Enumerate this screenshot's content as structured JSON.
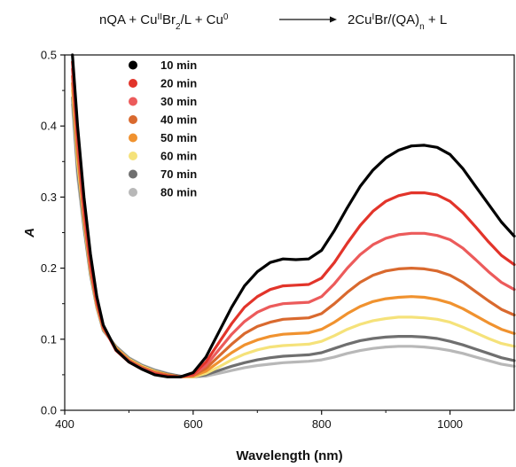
{
  "reaction": {
    "left": "nQA + Cu",
    "left_sup1": "II",
    "left_mid1": "Br",
    "left_sub1": "2",
    "left_mid2": "/L + Cu",
    "left_sup2": "0",
    "right": "2Cu",
    "right_sup1": "I",
    "right_mid1": "Br/(QA)",
    "right_sub1": "n",
    "right_mid2": " + L"
  },
  "chart_data": {
    "type": "line",
    "xlabel": "Wavelength (nm)",
    "ylabel": "A",
    "xlim": [
      400,
      1100
    ],
    "ylim": [
      0.0,
      0.5
    ],
    "xticks": [
      400,
      600,
      800,
      1000
    ],
    "xtick_labels": [
      "400",
      "600",
      "800",
      "1000"
    ],
    "yticks": [
      0.0,
      0.1,
      0.2,
      0.3,
      0.4,
      0.5
    ],
    "ytick_labels": [
      "0.0",
      "0.1",
      "0.2",
      "0.3",
      "0.4",
      "0.5"
    ],
    "legend_position": "top-left",
    "grid": false,
    "series": [
      {
        "name": "10 min",
        "color": "#000000",
        "x": [
          412,
          420,
          430,
          440,
          450,
          460,
          480,
          500,
          520,
          540,
          560,
          580,
          600,
          620,
          640,
          660,
          680,
          700,
          720,
          740,
          760,
          780,
          800,
          820,
          840,
          860,
          880,
          900,
          920,
          940,
          960,
          980,
          1000,
          1020,
          1040,
          1060,
          1080,
          1100
        ],
        "y": [
          0.5,
          0.4,
          0.3,
          0.22,
          0.16,
          0.12,
          0.085,
          0.068,
          0.058,
          0.05,
          0.047,
          0.047,
          0.053,
          0.075,
          0.11,
          0.145,
          0.175,
          0.195,
          0.208,
          0.213,
          0.212,
          0.213,
          0.225,
          0.253,
          0.285,
          0.315,
          0.338,
          0.355,
          0.366,
          0.372,
          0.373,
          0.37,
          0.36,
          0.34,
          0.315,
          0.29,
          0.265,
          0.245
        ]
      },
      {
        "name": "20 min",
        "color": "#e2342a",
        "x": [
          412,
          420,
          430,
          440,
          450,
          460,
          480,
          500,
          520,
          540,
          560,
          580,
          600,
          620,
          640,
          660,
          680,
          700,
          720,
          740,
          760,
          780,
          800,
          820,
          840,
          860,
          880,
          900,
          920,
          940,
          960,
          980,
          1000,
          1020,
          1040,
          1060,
          1080,
          1100
        ],
        "y": [
          0.49,
          0.39,
          0.29,
          0.21,
          0.155,
          0.118,
          0.084,
          0.068,
          0.058,
          0.051,
          0.048,
          0.047,
          0.051,
          0.068,
          0.095,
          0.122,
          0.145,
          0.16,
          0.17,
          0.175,
          0.176,
          0.177,
          0.186,
          0.208,
          0.235,
          0.26,
          0.28,
          0.294,
          0.302,
          0.306,
          0.306,
          0.303,
          0.294,
          0.278,
          0.258,
          0.237,
          0.218,
          0.205
        ]
      },
      {
        "name": "30 min",
        "color": "#ec5b5b",
        "x": [
          412,
          420,
          430,
          440,
          450,
          460,
          480,
          500,
          520,
          540,
          560,
          580,
          600,
          620,
          640,
          660,
          680,
          700,
          720,
          740,
          760,
          780,
          800,
          820,
          840,
          860,
          880,
          900,
          920,
          940,
          960,
          980,
          1000,
          1020,
          1040,
          1060,
          1080,
          1100
        ],
        "y": [
          0.48,
          0.38,
          0.28,
          0.205,
          0.152,
          0.117,
          0.085,
          0.069,
          0.059,
          0.052,
          0.048,
          0.047,
          0.05,
          0.063,
          0.085,
          0.107,
          0.125,
          0.138,
          0.146,
          0.15,
          0.151,
          0.152,
          0.16,
          0.178,
          0.2,
          0.219,
          0.233,
          0.242,
          0.247,
          0.249,
          0.249,
          0.246,
          0.24,
          0.228,
          0.212,
          0.195,
          0.18,
          0.17
        ]
      },
      {
        "name": "40 min",
        "color": "#d9692e",
        "x": [
          412,
          420,
          430,
          440,
          450,
          460,
          480,
          500,
          520,
          540,
          560,
          580,
          600,
          620,
          640,
          660,
          680,
          700,
          720,
          740,
          760,
          780,
          800,
          820,
          840,
          860,
          880,
          900,
          920,
          940,
          960,
          980,
          1000,
          1020,
          1040,
          1060,
          1080,
          1100
        ],
        "y": [
          0.47,
          0.37,
          0.275,
          0.2,
          0.15,
          0.116,
          0.086,
          0.07,
          0.06,
          0.053,
          0.049,
          0.047,
          0.049,
          0.059,
          0.076,
          0.093,
          0.108,
          0.118,
          0.124,
          0.128,
          0.129,
          0.13,
          0.136,
          0.15,
          0.166,
          0.18,
          0.19,
          0.196,
          0.199,
          0.2,
          0.199,
          0.196,
          0.19,
          0.18,
          0.167,
          0.154,
          0.142,
          0.134
        ]
      },
      {
        "name": "50 min",
        "color": "#f0922f",
        "x": [
          412,
          420,
          430,
          440,
          450,
          460,
          480,
          500,
          520,
          540,
          560,
          580,
          600,
          620,
          640,
          660,
          680,
          700,
          720,
          740,
          760,
          780,
          800,
          820,
          840,
          860,
          880,
          900,
          920,
          940,
          960,
          980,
          1000,
          1020,
          1040,
          1060,
          1080,
          1100
        ],
        "y": [
          0.46,
          0.36,
          0.27,
          0.198,
          0.148,
          0.115,
          0.087,
          0.071,
          0.061,
          0.054,
          0.05,
          0.047,
          0.048,
          0.055,
          0.068,
          0.081,
          0.092,
          0.099,
          0.104,
          0.107,
          0.108,
          0.109,
          0.114,
          0.124,
          0.136,
          0.146,
          0.153,
          0.157,
          0.159,
          0.16,
          0.159,
          0.156,
          0.151,
          0.143,
          0.133,
          0.123,
          0.114,
          0.108
        ]
      },
      {
        "name": "60 min",
        "color": "#f5e27a",
        "x": [
          412,
          420,
          430,
          440,
          450,
          460,
          480,
          500,
          520,
          540,
          560,
          580,
          600,
          620,
          640,
          660,
          680,
          700,
          720,
          740,
          760,
          780,
          800,
          820,
          840,
          860,
          880,
          900,
          920,
          940,
          960,
          980,
          1000,
          1020,
          1040,
          1060,
          1080,
          1100
        ],
        "y": [
          0.45,
          0.35,
          0.265,
          0.195,
          0.146,
          0.114,
          0.088,
          0.072,
          0.062,
          0.055,
          0.05,
          0.047,
          0.047,
          0.052,
          0.061,
          0.071,
          0.079,
          0.085,
          0.089,
          0.091,
          0.092,
          0.093,
          0.097,
          0.105,
          0.114,
          0.121,
          0.126,
          0.129,
          0.131,
          0.131,
          0.13,
          0.128,
          0.124,
          0.117,
          0.109,
          0.101,
          0.094,
          0.09
        ]
      },
      {
        "name": "70 min",
        "color": "#6f6f6f",
        "x": [
          412,
          420,
          430,
          440,
          450,
          460,
          480,
          500,
          520,
          540,
          560,
          580,
          600,
          620,
          640,
          660,
          680,
          700,
          720,
          740,
          760,
          780,
          800,
          820,
          840,
          860,
          880,
          900,
          920,
          940,
          960,
          980,
          1000,
          1020,
          1040,
          1060,
          1080,
          1100
        ],
        "y": [
          0.44,
          0.34,
          0.26,
          0.192,
          0.145,
          0.113,
          0.089,
          0.073,
          0.063,
          0.056,
          0.051,
          0.048,
          0.047,
          0.05,
          0.056,
          0.062,
          0.067,
          0.071,
          0.074,
          0.076,
          0.077,
          0.078,
          0.081,
          0.087,
          0.093,
          0.098,
          0.101,
          0.103,
          0.104,
          0.104,
          0.103,
          0.101,
          0.097,
          0.092,
          0.086,
          0.08,
          0.074,
          0.07
        ]
      },
      {
        "name": "80 min",
        "color": "#b8b8b8",
        "x": [
          412,
          420,
          430,
          440,
          450,
          460,
          480,
          500,
          520,
          540,
          560,
          580,
          600,
          620,
          640,
          660,
          680,
          700,
          720,
          740,
          760,
          780,
          800,
          820,
          840,
          860,
          880,
          900,
          920,
          940,
          960,
          980,
          1000,
          1020,
          1040,
          1060,
          1080,
          1100
        ],
        "y": [
          0.43,
          0.33,
          0.255,
          0.19,
          0.144,
          0.112,
          0.09,
          0.074,
          0.064,
          0.057,
          0.052,
          0.048,
          0.047,
          0.048,
          0.052,
          0.056,
          0.06,
          0.063,
          0.065,
          0.067,
          0.068,
          0.069,
          0.071,
          0.075,
          0.08,
          0.084,
          0.087,
          0.089,
          0.09,
          0.09,
          0.089,
          0.087,
          0.084,
          0.08,
          0.075,
          0.07,
          0.065,
          0.062
        ]
      }
    ]
  }
}
